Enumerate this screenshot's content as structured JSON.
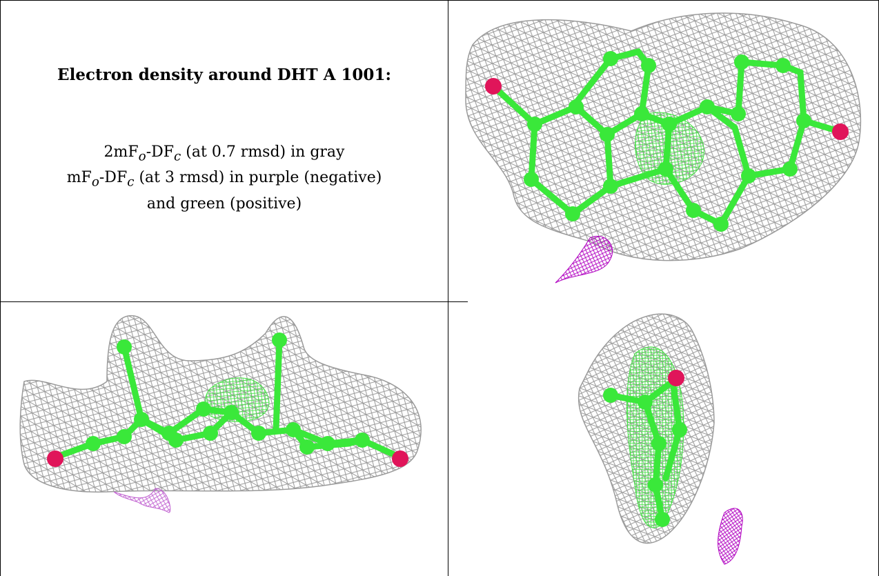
{
  "caption": {
    "title": "Electron density around DHT A 1001:",
    "lines": [
      {
        "pre": "2mF",
        "sub1": "o",
        "mid": "-DF",
        "sub2": "c",
        "post": " (at 0.7 rmsd) in gray"
      },
      {
        "pre": "mF",
        "sub1": "o",
        "mid": "-DF",
        "sub2": "c",
        "post": " (at 3 rmsd) in purple (negative)"
      },
      {
        "text": "and green (positive)"
      }
    ]
  },
  "colors": {
    "mesh_gray": "#9a9a9a",
    "carbon_green": "#3ae83a",
    "oxygen_red": "#e0155a",
    "negative_purple": "#b000c0",
    "positive_green": "#40e040"
  },
  "panels": [
    {
      "name": "view-top-right",
      "view": "face-on"
    },
    {
      "name": "view-bottom-left",
      "view": "edge-on"
    },
    {
      "name": "view-bottom-right",
      "view": "end-on"
    }
  ]
}
